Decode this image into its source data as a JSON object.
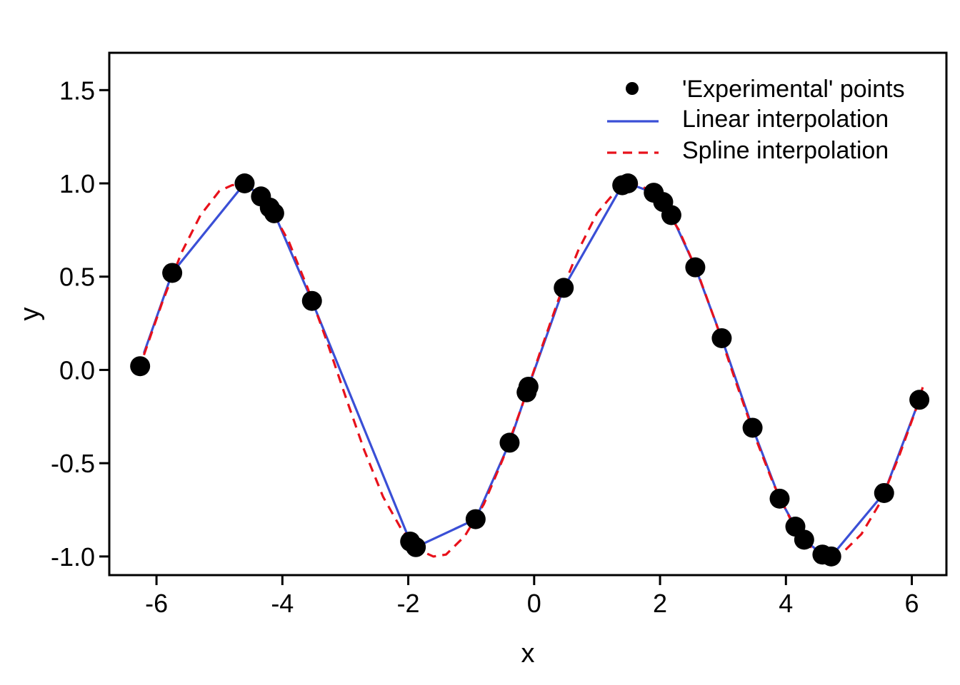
{
  "chart_data": {
    "type": "line",
    "xlabel": "x",
    "ylabel": "y",
    "xlim": [
      -6.75,
      6.55
    ],
    "ylim": [
      -1.1,
      1.7
    ],
    "xticks": [
      -6,
      -4,
      -2,
      0,
      2,
      4,
      6
    ],
    "yticks": [
      -1.0,
      -0.5,
      0.0,
      0.5,
      1.0,
      1.5
    ],
    "xtick_labels": [
      "-6",
      "-4",
      "-2",
      "0",
      "2",
      "4",
      "6"
    ],
    "ytick_labels": [
      "-1.0",
      "-0.5",
      "0.0",
      "0.5",
      "1.0",
      "1.5"
    ],
    "grid": false,
    "legend": {
      "position": "top-right",
      "entries": [
        "'Experimental' points",
        "Linear interpolation",
        "Spline interpolation"
      ]
    },
    "series": [
      {
        "name": "'Experimental' points",
        "style": "scatter",
        "color": "#000000",
        "x": [
          -6.26,
          -5.75,
          -4.6,
          -4.34,
          -4.2,
          -4.13,
          -3.53,
          -1.97,
          -1.88,
          -0.93,
          -0.39,
          -0.12,
          -0.09,
          0.47,
          1.4,
          1.49,
          1.9,
          2.05,
          2.18,
          2.56,
          2.98,
          3.47,
          3.9,
          4.15,
          4.29,
          4.58,
          4.72,
          5.56,
          6.12
        ],
        "y": [
          0.02,
          0.52,
          1.0,
          0.93,
          0.87,
          0.84,
          0.37,
          -0.92,
          -0.95,
          -0.8,
          -0.39,
          -0.12,
          -0.09,
          0.44,
          0.99,
          1.0,
          0.95,
          0.9,
          0.83,
          0.55,
          0.17,
          -0.31,
          -0.69,
          -0.84,
          -0.91,
          -0.99,
          -1.0,
          -0.66,
          -0.16
        ]
      },
      {
        "name": "Linear interpolation",
        "style": "line",
        "color": "#3a4fd6",
        "x": [
          -6.2,
          -5.75,
          -4.6,
          -4.34,
          -4.2,
          -4.13,
          -3.53,
          -1.97,
          -1.88,
          -0.93,
          -0.39,
          -0.12,
          -0.09,
          0.47,
          1.4,
          1.49,
          1.9,
          2.05,
          2.18,
          2.56,
          2.98,
          3.47,
          3.9,
          4.15,
          4.29,
          4.58,
          4.72,
          5.56,
          6.12
        ],
        "y": [
          0.09,
          0.52,
          1.0,
          0.93,
          0.87,
          0.84,
          0.37,
          -0.92,
          -0.95,
          -0.8,
          -0.39,
          -0.12,
          -0.09,
          0.44,
          0.99,
          1.0,
          0.95,
          0.9,
          0.83,
          0.55,
          0.17,
          -0.31,
          -0.69,
          -0.84,
          -0.91,
          -0.99,
          -1.0,
          -0.66,
          -0.16
        ]
      },
      {
        "name": "Spline interpolation",
        "style": "dashed",
        "color": "#e8111b",
        "x": [
          -6.2,
          -5.9,
          -5.6,
          -5.3,
          -5.0,
          -4.8,
          -4.6,
          -4.4,
          -4.2,
          -3.9,
          -3.6,
          -3.3,
          -3.0,
          -2.7,
          -2.4,
          -2.1,
          -1.8,
          -1.6,
          -1.4,
          -1.1,
          -0.8,
          -0.5,
          -0.2,
          0.1,
          0.4,
          0.7,
          1.0,
          1.3,
          1.5,
          1.7,
          2.0,
          2.3,
          2.6,
          2.9,
          3.2,
          3.5,
          3.8,
          4.1,
          4.4,
          4.7,
          4.9,
          5.2,
          5.5,
          5.8,
          6.1,
          6.2
        ],
        "y": [
          0.08,
          0.37,
          0.63,
          0.83,
          0.96,
          0.99,
          1.0,
          0.95,
          0.87,
          0.69,
          0.44,
          0.16,
          -0.14,
          -0.43,
          -0.68,
          -0.86,
          -0.97,
          -1.0,
          -0.99,
          -0.89,
          -0.72,
          -0.48,
          -0.2,
          0.1,
          0.39,
          0.64,
          0.84,
          0.96,
          1.0,
          0.99,
          0.91,
          0.75,
          0.52,
          0.24,
          -0.06,
          -0.35,
          -0.61,
          -0.82,
          -0.95,
          -1.0,
          -0.98,
          -0.88,
          -0.71,
          -0.46,
          -0.18,
          -0.06
        ]
      }
    ]
  }
}
